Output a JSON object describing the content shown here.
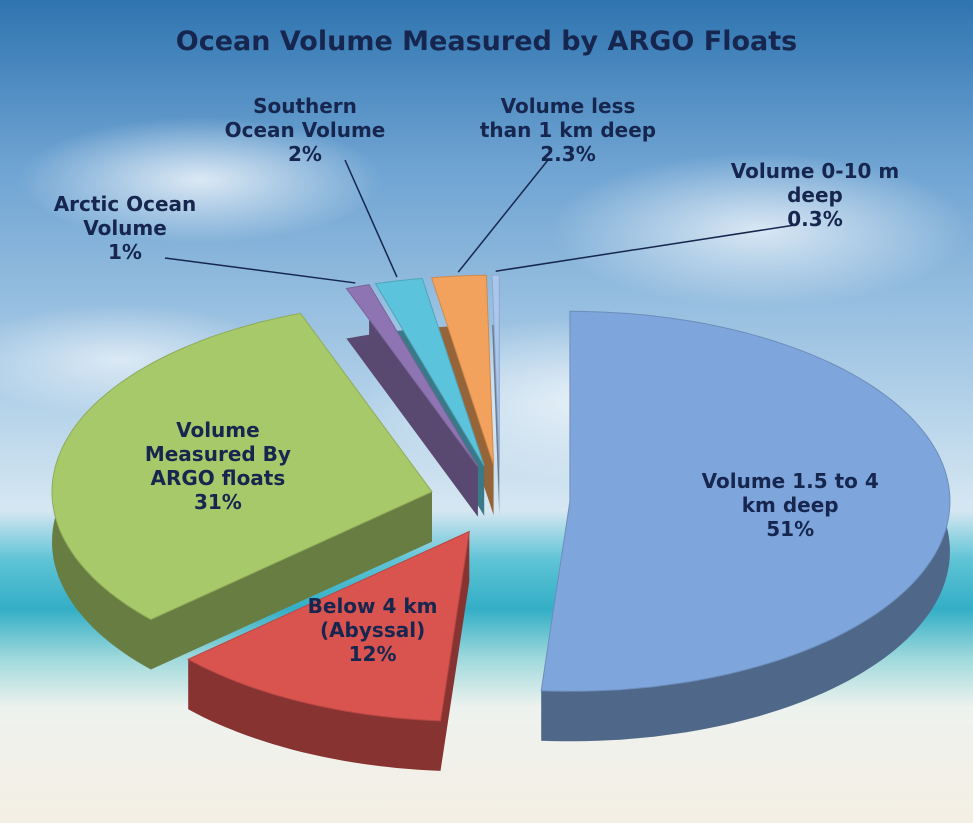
{
  "chart_data": {
    "type": "pie3d",
    "title": "Ocean Volume Measured by ARGO Floats",
    "categories": [
      "Volume 1.5 to 4 km deep",
      "Below 4 km (Abyssal)",
      "Volume Measured By ARGO floats",
      "Arctic Ocean Volume",
      "Southern Ocean Volume",
      "Volume less than 1 km deep",
      "Volume 0-10 m deep"
    ],
    "values": [
      51,
      12,
      31,
      1,
      2,
      2.3,
      0.3
    ],
    "value_labels": [
      "51%",
      "12%",
      "31%",
      "1%",
      "2%",
      "2.3%",
      "0.3%"
    ],
    "colors": [
      "#7fa6dc",
      "#d9534f",
      "#a8c96a",
      "#8f74b4",
      "#5cc3dc",
      "#f2a25c",
      "#a9c6ec"
    ]
  }
}
